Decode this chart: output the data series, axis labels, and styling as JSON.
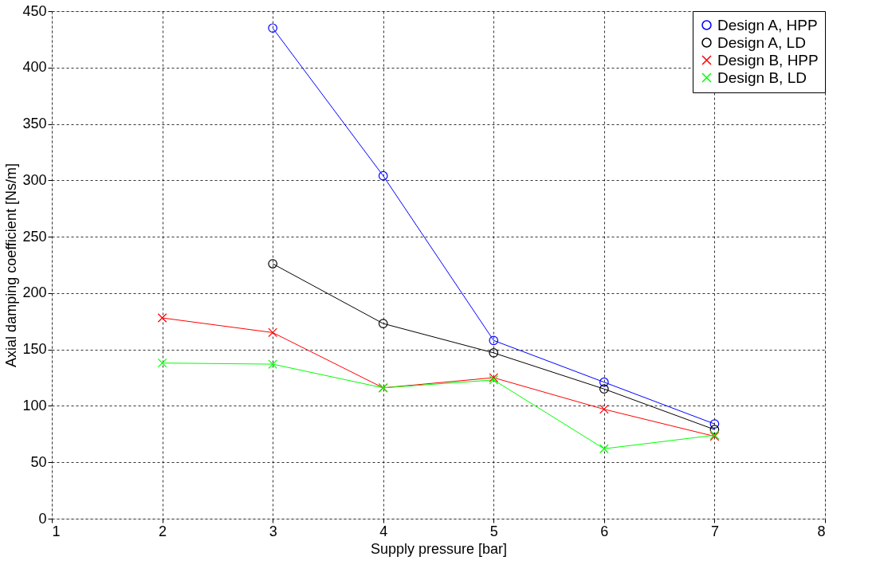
{
  "chart_data": {
    "type": "line",
    "xlabel": "Supply pressure [bar]",
    "ylabel": "Axial damping coefficient [Ns/m]",
    "xlim": [
      1,
      8
    ],
    "xticks": [
      1,
      2,
      3,
      4,
      5,
      6,
      7,
      8
    ],
    "ylim": [
      0,
      450
    ],
    "yticks": [
      0,
      50,
      100,
      150,
      200,
      250,
      300,
      350,
      400,
      450
    ],
    "grid": true,
    "legend": "top right",
    "line_style": "solid",
    "series": [
      {
        "name": "Design A, HPP",
        "color": "#0000ff",
        "marker": "circle",
        "x": [
          3,
          4,
          5,
          6,
          7
        ],
        "values": [
          435,
          304,
          158,
          121,
          84
        ]
      },
      {
        "name": "Design A, LD",
        "color": "#000000",
        "marker": "circle",
        "x": [
          3,
          4,
          5,
          6,
          7
        ],
        "values": [
          226,
          173,
          147,
          115,
          79
        ]
      },
      {
        "name": "Design B, HPP",
        "color": "#ff0000",
        "marker": "cross",
        "x": [
          2,
          3,
          4,
          5,
          6,
          7
        ],
        "values": [
          178,
          165,
          116,
          125,
          97,
          73
        ]
      },
      {
        "name": "Design B, LD",
        "color": "#00ff00",
        "marker": "cross",
        "x": [
          2,
          3,
          4,
          5,
          6,
          7
        ],
        "values": [
          138,
          137,
          116,
          123,
          62,
          74
        ]
      }
    ]
  }
}
